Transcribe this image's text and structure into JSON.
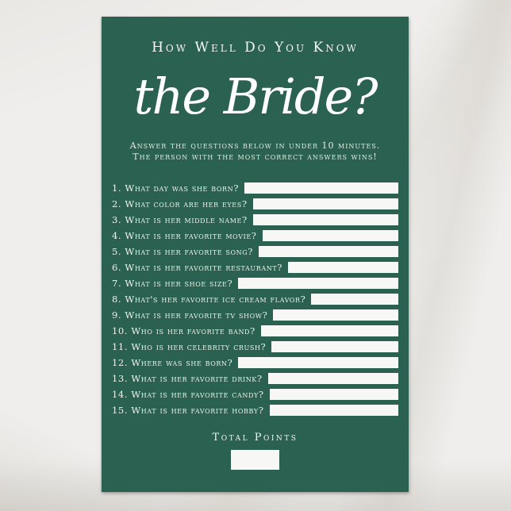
{
  "card": {
    "title": "How Well Do You Know",
    "script_title": "the Bride?",
    "subtitle_line1": "Answer the questions below in under 10 minutes.",
    "subtitle_line2": "The person with the most correct answers wins!",
    "questions": [
      "1. What day was she born?",
      "2. What color are her eyes?",
      "3. What is her middle name?",
      "4. What is her favorite movie?",
      "5. What is her favorite song?",
      "6. What is her favorite restaurant?",
      "7. What is her shoe size?",
      "8. What's her favorite ice cream flavor?",
      "9. What is her favorite tv show?",
      "10. Who is her favorite band?",
      "11. Who is her celebrity crush?",
      "12. Where was she born?",
      "13. What is her favorite drink?",
      "14. What is her favorite candy?",
      "15. What is her favorite hobby?"
    ],
    "total_points_label": "Total Points"
  },
  "colors": {
    "card_green": "#2b6150",
    "background_marble": "#efeeec",
    "answer_box": "#f7f8f6",
    "text_white": "#f5f8f4"
  }
}
